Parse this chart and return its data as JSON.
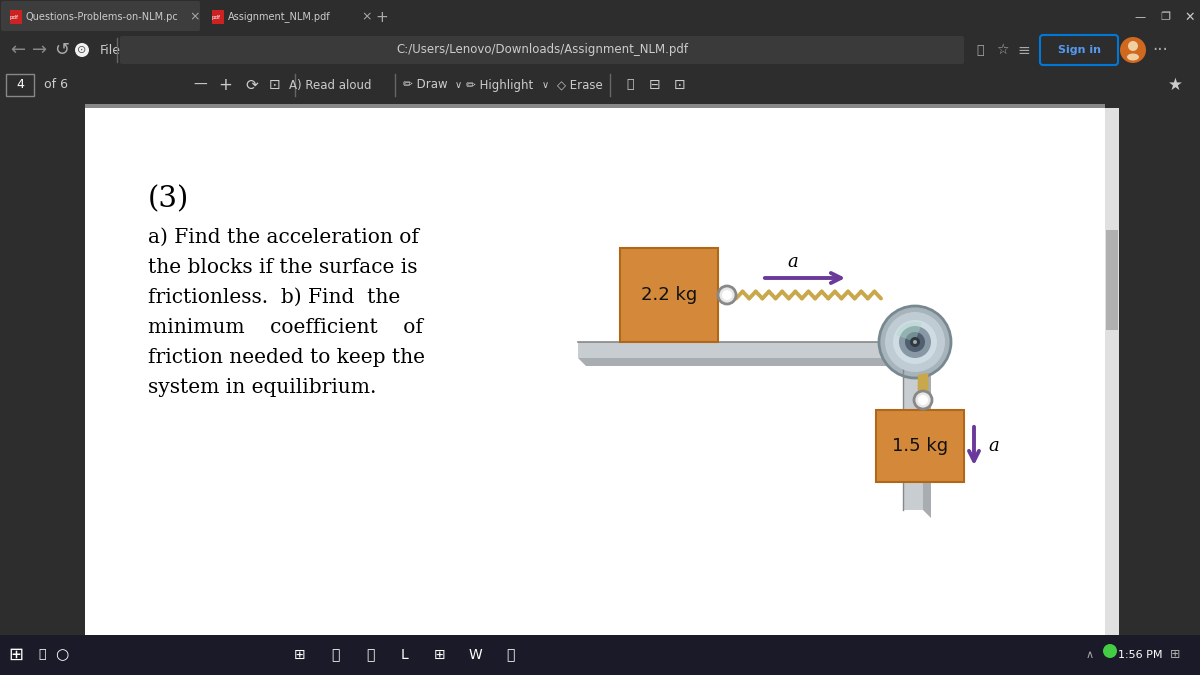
{
  "bg_color": "#2d2d2d",
  "tab_bar_color": "#404040",
  "tab1_active_color": "#3a3a3a",
  "tab2_active_color": "#2d2d2d",
  "nav_bar_color": "#2d2d2d",
  "pdf_toolbar_color": "#2d2d2d",
  "page_bg": "#ffffff",
  "page_border": "#cccccc",
  "block_color": "#D4883A",
  "block_edge_color": "#B06818",
  "surface_color": "#c8cdd2",
  "surface_edge_color": "#999999",
  "pulley_outer_color": "#a8b4bc",
  "pulley_mid_color": "#c8d4dc",
  "pulley_inner_color": "#7888900",
  "pulley_hub_color": "#303840",
  "rope_color": "#c8a84b",
  "rope_dark_color": "#a08030",
  "arrow_color": "#6a3a9a",
  "text_color": "#000000",
  "white": "#ffffff",
  "title_text": "(3)",
  "body_text_lines": [
    "a) Find the acceleration of",
    "the blocks if the surface is",
    "frictionless.  b) Find  the",
    "minimum    coefficient    of",
    "friction needed to keep the",
    "system in equilibrium."
  ],
  "mass1_label": "2.2 kg",
  "mass2_label": "1.5 kg",
  "accel_label": "a",
  "page_num": "4",
  "page_total": "of 6",
  "time_text": "1:56 PM",
  "tab1_text": "Questions-Problems-on-NLM.pc",
  "tab2_text": "Assignment_NLM.pdf",
  "url_text": "C:/Users/Lenovo/Downloads/Assignment_NLM.pdf",
  "sign_in_text": "Sign in"
}
